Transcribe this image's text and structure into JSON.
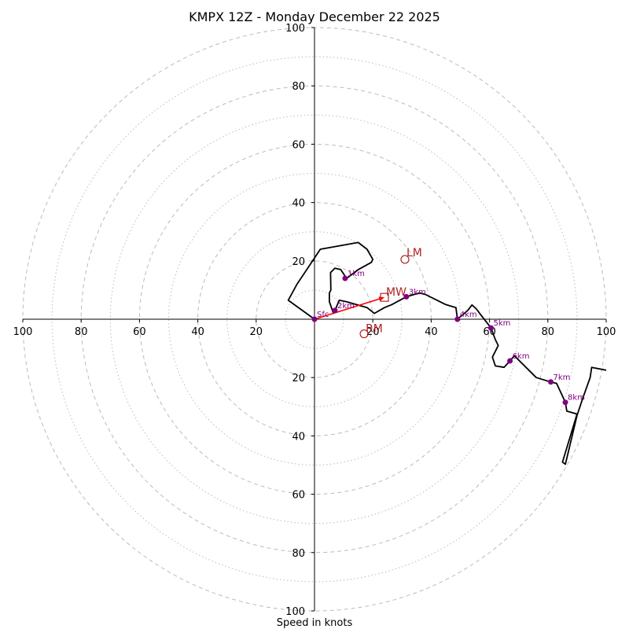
{
  "chart_data": {
    "type": "hodograph",
    "title": "KMPX 12Z - Monday December 22 2025",
    "xlabel": "Speed in knots",
    "units": "knots",
    "range": [
      -100,
      100
    ],
    "ring_major": [
      20,
      40,
      60,
      80,
      100
    ],
    "ring_minor": [
      10,
      30,
      50,
      70,
      90
    ],
    "x_tick_labels": [
      {
        "value": -100,
        "label": "100"
      },
      {
        "value": -80,
        "label": "80"
      },
      {
        "value": -60,
        "label": "60"
      },
      {
        "value": -40,
        "label": "40"
      },
      {
        "value": -20,
        "label": "20"
      },
      {
        "value": 20,
        "label": "20"
      },
      {
        "value": 40,
        "label": "40"
      },
      {
        "value": 60,
        "label": "60"
      },
      {
        "value": 80,
        "label": "80"
      },
      {
        "value": 100,
        "label": "100"
      }
    ],
    "y_tick_labels": [
      {
        "value": 100,
        "label": "100"
      },
      {
        "value": 80,
        "label": "80"
      },
      {
        "value": 60,
        "label": "60"
      },
      {
        "value": 40,
        "label": "40"
      },
      {
        "value": 20,
        "label": "20"
      },
      {
        "value": -20,
        "label": "20"
      },
      {
        "value": -40,
        "label": "40"
      },
      {
        "value": -60,
        "label": "60"
      },
      {
        "value": -80,
        "label": "80"
      },
      {
        "value": -100,
        "label": "100"
      }
    ],
    "trace": [
      [
        0,
        0
      ],
      [
        -9,
        6.5
      ],
      [
        -6,
        12
      ],
      [
        -2,
        18
      ],
      [
        2,
        24
      ],
      [
        15,
        26.3
      ],
      [
        18,
        24
      ],
      [
        20,
        20.5
      ],
      [
        19.5,
        19.5
      ],
      [
        15,
        17
      ],
      [
        11,
        14
      ],
      [
        9,
        17
      ],
      [
        7,
        17.5
      ],
      [
        5.5,
        16
      ],
      [
        5.6,
        10
      ],
      [
        5.1,
        9
      ],
      [
        5.1,
        6
      ],
      [
        6.5,
        2
      ],
      [
        7,
        3
      ],
      [
        8.5,
        6.5
      ],
      [
        11,
        6
      ],
      [
        18,
        4
      ],
      [
        20.5,
        2
      ],
      [
        24,
        4
      ],
      [
        26.5,
        5
      ],
      [
        31.5,
        7.7
      ],
      [
        36,
        9
      ],
      [
        38,
        8.5
      ],
      [
        45,
        5
      ],
      [
        48.5,
        4
      ],
      [
        49,
        0
      ],
      [
        52.5,
        3
      ],
      [
        54,
        4.9
      ],
      [
        55.5,
        3.5
      ],
      [
        57,
        1.5
      ],
      [
        60.5,
        -3
      ],
      [
        62,
        -7
      ],
      [
        63,
        -9
      ],
      [
        62,
        -11
      ],
      [
        61,
        -13
      ],
      [
        62,
        -16
      ],
      [
        65,
        -16.5
      ],
      [
        67,
        -14.3
      ],
      [
        68.5,
        -12.5
      ],
      [
        76,
        -20
      ],
      [
        81,
        -21.5
      ],
      [
        83,
        -22
      ],
      [
        86,
        -28.5
      ],
      [
        86.5,
        -31.5
      ],
      [
        90,
        -32.5
      ],
      [
        85,
        -49
      ],
      [
        86,
        -49.7
      ],
      [
        90,
        -33
      ],
      [
        92,
        -27
      ],
      [
        94.5,
        -20
      ],
      [
        95,
        -16.5
      ],
      [
        100,
        -17.5
      ]
    ],
    "height_markers": [
      {
        "label": "Sfc",
        "u": 0,
        "v": 0
      },
      {
        "label": "1km",
        "u": 10.5,
        "v": 14
      },
      {
        "label": "2km",
        "u": 7,
        "v": 3
      },
      {
        "label": "3km",
        "u": 31.5,
        "v": 7.7
      },
      {
        "label": "4km",
        "u": 49,
        "v": 0
      },
      {
        "label": "5km",
        "u": 60.5,
        "v": -3
      },
      {
        "label": "6km",
        "u": 67,
        "v": -14.3
      },
      {
        "label": "7km",
        "u": 81,
        "v": -21.5
      },
      {
        "label": "8km",
        "u": 86,
        "v": -28.5
      }
    ],
    "storm_motion": {
      "MW": {
        "label": "MW",
        "u": 24,
        "v": 7.5
      },
      "LM": {
        "label": "LM",
        "u": 31,
        "v": 20.5
      },
      "RM": {
        "label": "RM",
        "u": 17,
        "v": -5
      }
    },
    "colors": {
      "trace": "#000000",
      "marker": "#800080",
      "storm": "#b22222",
      "arrow": "#ff0000",
      "grid": "#bbbbbb"
    }
  }
}
